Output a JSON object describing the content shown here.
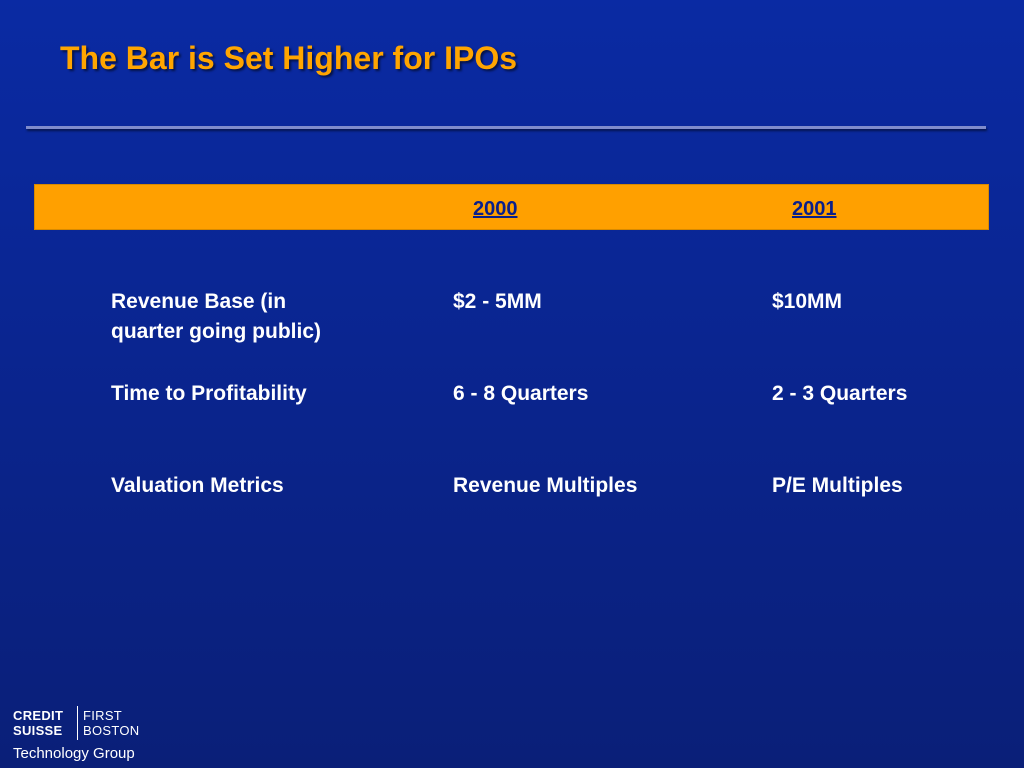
{
  "slide": {
    "title": "The Bar is Set Higher for IPOs"
  },
  "table": {
    "headers": [
      "2000",
      "2001"
    ],
    "rows": [
      {
        "label_line1": "Revenue Base (in",
        "label_line2": "quarter going public)",
        "y2000": "$2 - 5MM",
        "y2001": "$10MM"
      },
      {
        "label": "Time to Profitability",
        "y2000": "6 - 8 Quarters",
        "y2001": "2 - 3 Quarters"
      },
      {
        "label": "Valuation Metrics",
        "y2000": "Revenue Multiples",
        "y2001": "P/E Multiples"
      }
    ]
  },
  "logo": {
    "credit": "CREDIT",
    "suisse": "SUISSE",
    "first": "FIRST",
    "boston": "BOSTON",
    "group": "Technology Group"
  },
  "colors": {
    "background": "#0a2590",
    "title": "#ffa500",
    "header_band": "#ffa000",
    "header_text": "#0a1f8a",
    "body_text": "#ffffff"
  }
}
